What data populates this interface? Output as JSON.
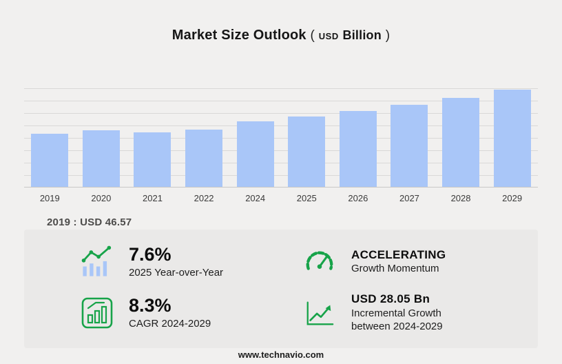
{
  "page": {
    "title": "Market Size Outlook",
    "unit_open": "(",
    "unit_currency": "USD",
    "unit_word": "Billion",
    "unit_close": ")",
    "base_year_label": "2019 : USD  46.57",
    "footer": "www.technavio.com"
  },
  "chart_data": {
    "type": "bar",
    "title": "Market Size Outlook (USD Billion)",
    "categories": [
      "2019",
      "2020",
      "2021",
      "2022",
      "2024",
      "2025",
      "2026",
      "2027",
      "2028",
      "2029"
    ],
    "values": [
      46.57,
      49.5,
      47.8,
      50.1,
      56.9,
      61.2,
      66.3,
      71.8,
      77.8,
      85.0
    ],
    "xlabel": "",
    "ylabel": "USD Billion",
    "ylim": [
      0,
      86
    ],
    "grid": true,
    "legend": "none",
    "bar_color": "#a9c6f8"
  },
  "stats": [
    {
      "id": "yoy",
      "icon": "bar-trend-icon",
      "value": "7.6%",
      "label": "2025 Year-over-Year"
    },
    {
      "id": "momentum",
      "icon": "speedometer-icon",
      "value": "ACCELERATING",
      "label": "Growth Momentum"
    },
    {
      "id": "cagr",
      "icon": "growth-bars-icon",
      "value": "8.3%",
      "label": "CAGR 2024-2029"
    },
    {
      "id": "incremental",
      "icon": "line-chart-icon",
      "value": "USD 28.05 Bn",
      "label": "Incremental Growth between 2024-2029"
    }
  ],
  "colors": {
    "accent_green": "#17a349",
    "bar": "#a9c6f8",
    "gridline": "#d9d8d7"
  }
}
